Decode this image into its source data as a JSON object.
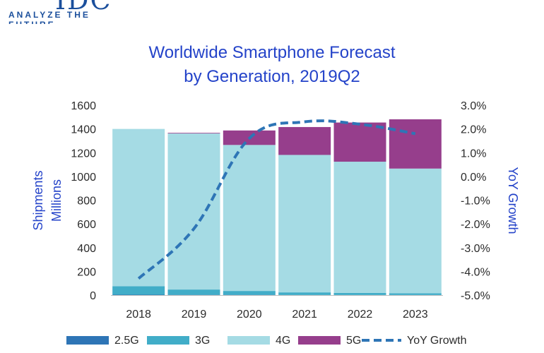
{
  "logo": {
    "mark": "IDC",
    "tagline": "ANALYZE THE FUTURE"
  },
  "chart_data": {
    "type": "bar",
    "stacked": true,
    "title": [
      "Worldwide Smartphone Forecast",
      "by Generation, 2019Q2"
    ],
    "categories": [
      "2018",
      "2019",
      "2020",
      "2021",
      "2022",
      "2023"
    ],
    "series": [
      {
        "name": "2.5G",
        "color": "#2e75b6",
        "values": [
          3,
          2,
          2,
          1,
          1,
          1
        ]
      },
      {
        "name": "3G",
        "color": "#41adc8",
        "values": [
          72,
          45,
          33,
          22,
          18,
          15
        ]
      },
      {
        "name": "4G",
        "color": "#a5dbe4",
        "values": [
          1325,
          1315,
          1230,
          1158,
          1105,
          1050
        ]
      },
      {
        "name": "5G",
        "color": "#963e8c",
        "values": [
          0,
          5,
          122,
          235,
          330,
          415
        ]
      }
    ],
    "line_series": {
      "name": "YoY Growth",
      "color": "#2e75b6",
      "axis": "right",
      "values": [
        -4.3,
        -2.2,
        1.6,
        2.3,
        2.2,
        1.8
      ]
    },
    "ylabel_left": [
      "Shipments",
      "Millions"
    ],
    "ylabel_right": "YoY Growth",
    "yticks_left": [
      "0",
      "200",
      "400",
      "600",
      "800",
      "1000",
      "1200",
      "1400",
      "1600"
    ],
    "yticks_right": [
      "-5.0%",
      "-4.0%",
      "-3.0%",
      "-2.0%",
      "-1.0%",
      "0.0%",
      "1.0%",
      "2.0%",
      "3.0%"
    ],
    "ylim_left": [
      0,
      1600
    ],
    "ylim_right": [
      -5,
      3
    ],
    "grid": false,
    "legend_position": "bottom"
  }
}
